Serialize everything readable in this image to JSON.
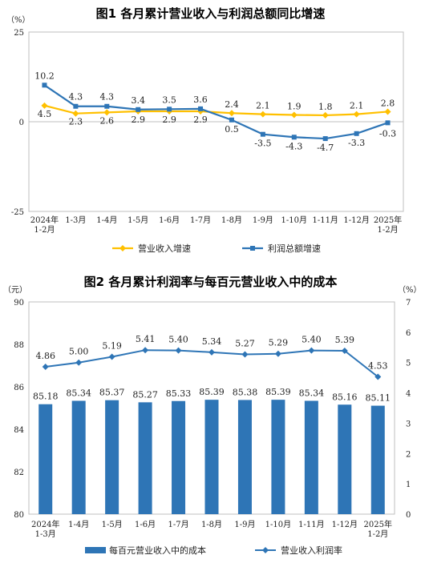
{
  "chart_data": [
    {
      "type": "line",
      "title": "图1  各月累计营业收入与利润总额同比增速",
      "ylabel": "（%）",
      "ylim": [
        -25,
        25
      ],
      "yticks": [
        "25",
        "0",
        "-25"
      ],
      "categories": [
        [
          "2024年",
          "1-2月"
        ],
        [
          "1-3月"
        ],
        [
          "1-4月"
        ],
        [
          "1-5月"
        ],
        [
          "1-6月"
        ],
        [
          "1-7月"
        ],
        [
          "1-8月"
        ],
        [
          "1-9月"
        ],
        [
          "1-10月"
        ],
        [
          "1-11月"
        ],
        [
          "1-12月"
        ],
        [
          "2025年",
          "1-2月"
        ]
      ],
      "series": [
        {
          "name": "营业收入增速",
          "color": "#FFC000",
          "marker": "diamond",
          "values": [
            4.5,
            2.3,
            2.6,
            2.9,
            2.9,
            2.9,
            2.4,
            2.1,
            1.9,
            1.8,
            2.1,
            2.8
          ],
          "labels": [
            "4.5",
            "2.3",
            "2.6",
            "2.9",
            "2.9",
            "2.9",
            "2.4",
            "2.1",
            "1.9",
            "1.8",
            "2.1",
            "2.8"
          ]
        },
        {
          "name": "利润总额增速",
          "color": "#2E75B6",
          "marker": "square",
          "values": [
            10.2,
            4.3,
            4.3,
            3.4,
            3.5,
            3.6,
            0.5,
            -3.5,
            -4.3,
            -4.7,
            -3.3,
            -0.3
          ],
          "labels": [
            "10.2",
            "4.3",
            "4.3",
            "3.4",
            "3.5",
            "3.6",
            "0.5",
            "-3.5",
            "-4.3",
            "-4.7",
            "-3.3",
            "-0.3"
          ]
        }
      ],
      "legend": "bottom"
    },
    {
      "type": "bar+line",
      "title": "图2  各月累计利润率与每百元营业收入中的成本",
      "ylabel_left": "（元）",
      "ylabel_right": "（%）",
      "ylim_left": [
        80,
        90
      ],
      "ylim_right": [
        0,
        7
      ],
      "yticks_left": [
        "90",
        "88",
        "86",
        "84",
        "82",
        "80"
      ],
      "yticks_right": [
        "7",
        "6",
        "5",
        "4",
        "3",
        "2",
        "1",
        "0"
      ],
      "categories": [
        [
          "2024年",
          "1-3月"
        ],
        [
          "1-4月"
        ],
        [
          "1-5月"
        ],
        [
          "1-6月"
        ],
        [
          "1-7月"
        ],
        [
          "1-8月"
        ],
        [
          "1-9月"
        ],
        [
          "1-10月"
        ],
        [
          "1-11月"
        ],
        [
          "1-12月"
        ],
        [
          "2025年",
          "1-2月"
        ]
      ],
      "series": [
        {
          "name": "每百元营业收入中的成本",
          "kind": "bar",
          "axis": "left",
          "color": "#2E75B6",
          "values": [
            85.18,
            85.34,
            85.37,
            85.27,
            85.33,
            85.39,
            85.38,
            85.39,
            85.34,
            85.16,
            85.11
          ],
          "labels": [
            "85.18",
            "85.34",
            "85.37",
            "85.27",
            "85.33",
            "85.39",
            "85.38",
            "85.39",
            "85.34",
            "85.16",
            "85.11"
          ]
        },
        {
          "name": "营业收入利润率",
          "kind": "line",
          "axis": "right",
          "color": "#2E75B6",
          "marker": "diamond",
          "values": [
            4.86,
            5.0,
            5.19,
            5.41,
            5.4,
            5.34,
            5.27,
            5.29,
            5.4,
            5.39,
            4.53
          ],
          "labels": [
            "4.86",
            "5.00",
            "5.19",
            "5.41",
            "5.40",
            "5.34",
            "5.27",
            "5.29",
            "5.40",
            "5.39",
            "4.53"
          ]
        }
      ],
      "legend": "bottom"
    }
  ]
}
